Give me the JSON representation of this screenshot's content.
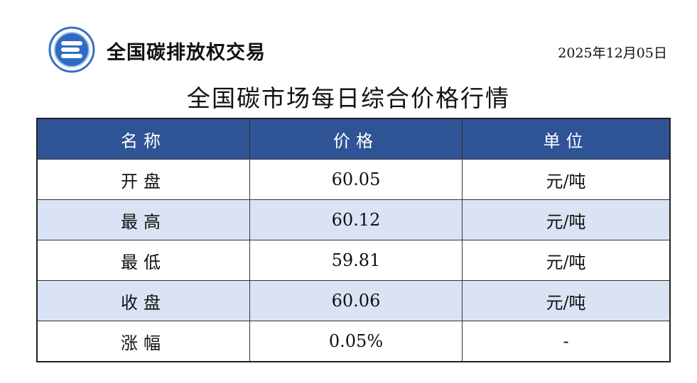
{
  "header": {
    "brand": "全国碳排放权交易",
    "date": "2025年12月05日"
  },
  "title": "全国碳市场每日综合价格行情",
  "colors": {
    "header_bg": "#2f5496",
    "alt_row": "#dae3f3"
  },
  "table": {
    "columns": [
      "名称",
      "价格",
      "单位"
    ],
    "rows": [
      {
        "name": "开盘",
        "price": "60.05",
        "unit": "元/吨"
      },
      {
        "name": "最高",
        "price": "60.12",
        "unit": "元/吨"
      },
      {
        "name": "最低",
        "price": "59.81",
        "unit": "元/吨"
      },
      {
        "name": "收盘",
        "price": "60.06",
        "unit": "元/吨"
      },
      {
        "name": "涨幅",
        "price": "0.05%",
        "unit": "-"
      }
    ]
  }
}
